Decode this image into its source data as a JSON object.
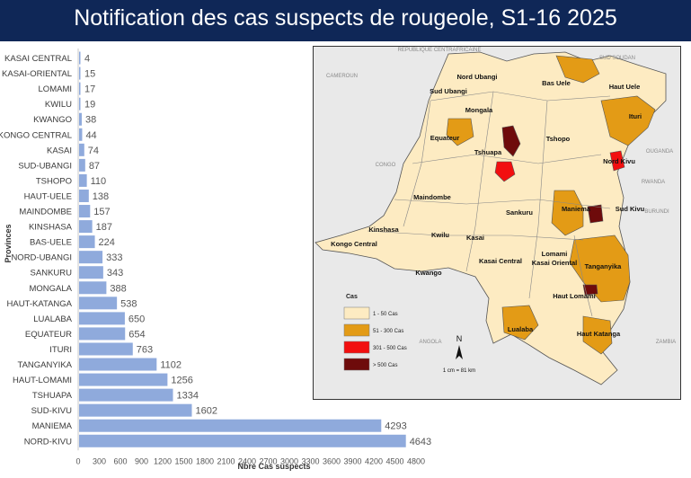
{
  "title": "Notification des cas suspects de rougeole, S1-16 2025",
  "chart_data": {
    "type": "bar",
    "orientation": "horizontal",
    "ylabel": "Provinces",
    "xlabel": "Nbre Cas suspects",
    "xlim": [
      0,
      4800
    ],
    "xticks": [
      0,
      300,
      600,
      900,
      1200,
      1500,
      1800,
      2100,
      2400,
      2700,
      3000,
      3300,
      3600,
      3900,
      4200,
      4500,
      4800
    ],
    "categories": [
      "KASAI CENTRAL",
      "KASAI-ORIENTAL",
      "LOMAMI",
      "KWILU",
      "KWANGO",
      "KONGO CENTRAL",
      "KASAI",
      "SUD-UBANGI",
      "TSHOPO",
      "HAUT-UELE",
      "MAINDOMBE",
      "KINSHASA",
      "BAS-UELE",
      "NORD-UBANGI",
      "SANKURU",
      "MONGALA",
      "HAUT-KATANGA",
      "LUALABA",
      "EQUATEUR",
      "ITURI",
      "TANGANYIKA",
      "HAUT-LOMAMI",
      "TSHUAPA",
      "SUD-KIVU",
      "MANIEMA",
      "NORD-KIVU"
    ],
    "values": [
      4,
      15,
      17,
      19,
      38,
      44,
      74,
      87,
      110,
      138,
      157,
      187,
      224,
      333,
      343,
      388,
      538,
      650,
      654,
      763,
      1102,
      1256,
      1334,
      1602,
      4293,
      4643
    ],
    "bar_color": "#8faadc",
    "grid": false
  },
  "map": {
    "neighbor_labels": [
      "CAMEROUN",
      "REPUBLIQUE CENTRAFRICAINE",
      "SUD SOUDAN",
      "OUGANDA",
      "CONGO",
      "RWANDA",
      "BURUNDI",
      "ANGOLA",
      "ZAMBIA"
    ],
    "province_labels": [
      "Nord Ubangi",
      "Bas Uele",
      "Haut Uele",
      "Sud Ubangi",
      "Mongala",
      "Ituri",
      "Equateur",
      "Tshopo",
      "Tshuapa",
      "Nord Kivu",
      "Maindombe",
      "Sankuru",
      "Maniema",
      "Sud Kivu",
      "Kinshasa",
      "Kongo Central",
      "Kwilu",
      "Kasai",
      "Lomami",
      "Kasai Central",
      "Kasai Oriental",
      "Tanganyika",
      "Kwango",
      "Haut Lomami",
      "Lualaba",
      "Haut Katanga"
    ],
    "legend_title": "Cas",
    "legend_items": [
      {
        "label": "1 -  50 Cas",
        "color": "#fdebc2"
      },
      {
        "label": "51 - 300 Cas",
        "color": "#e39b16"
      },
      {
        "label": "301 - 500 Cas",
        "color": "#f20f0f"
      },
      {
        "label": "> 500 Cas",
        "color": "#6e0b0b"
      }
    ],
    "north_label": "N",
    "scale_label": "1 cm = 81 km"
  }
}
